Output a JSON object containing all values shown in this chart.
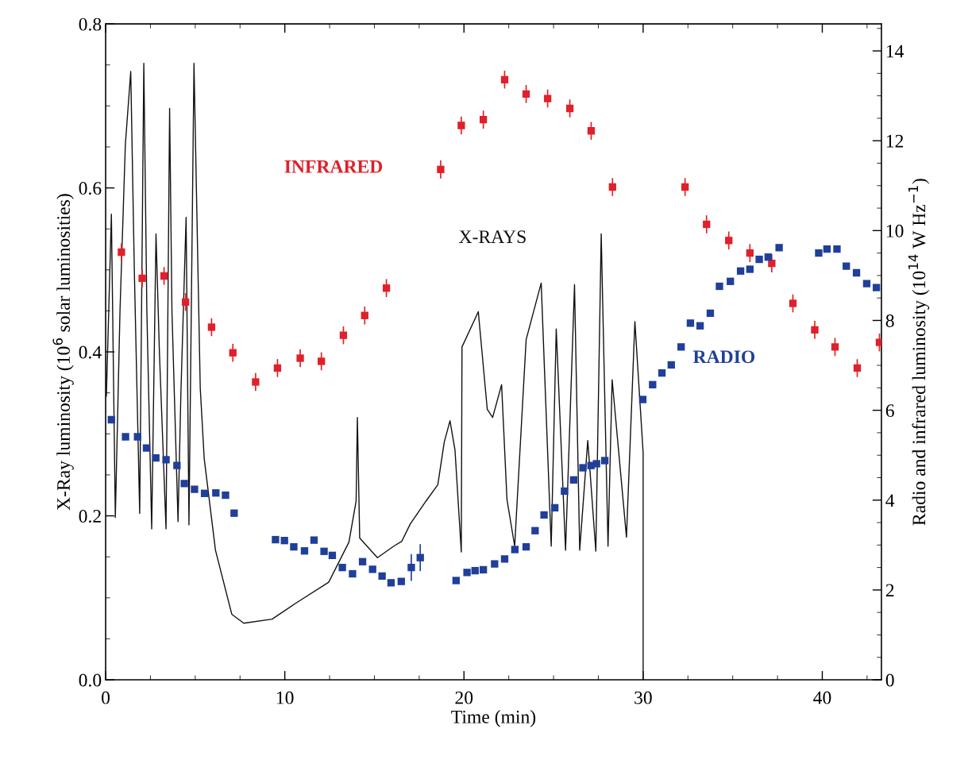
{
  "chart_data": {
    "type": "scatter",
    "xlabel": "Time (min)",
    "ylabel": "X-Ray luminosity (10$^{6}$ solar luminosities)",
    "y2label": "Radio and infrared luminosity (10$^{14}$ W Hz$^{−1}$)",
    "xlim": [
      0,
      43.3
    ],
    "xticks": [
      0,
      10,
      20,
      30,
      40
    ],
    "ylim": [
      0,
      0.8
    ],
    "yticks": [
      {
        "value": 0,
        "label": "0.0"
      },
      {
        "value": 0.2,
        "label": "0.2"
      },
      {
        "value": 0.4,
        "label": "0.4"
      },
      {
        "value": 0.6,
        "label": "0.6"
      },
      {
        "value": 0.8,
        "label": "0.8"
      }
    ],
    "y2lim": [
      0,
      14.6
    ],
    "y2ticks": [
      0,
      2,
      4,
      6,
      8,
      10,
      12,
      14
    ],
    "grid": false,
    "legend": false,
    "marker": "square",
    "series": [
      {
        "name": "X-RAYS",
        "type": "line",
        "marker": "none",
        "line_style": "solid",
        "color": "#111111",
        "x": [
          0.04,
          0.32,
          0.54,
          0.8,
          1.1,
          1.4,
          1.6,
          1.9,
          2.13,
          2.3,
          2.57,
          2.81,
          3.0,
          3.37,
          3.57,
          3.7,
          4.04,
          4.2,
          4.49,
          4.65,
          4.93,
          5.28,
          5.5,
          6.13,
          7.04,
          7.71,
          9.29,
          10.65,
          12.45,
          13.58,
          13.98,
          14.05,
          14.18,
          15.17,
          16.08,
          16.53,
          17.0,
          17.88,
          18.54,
          18.9,
          19.22,
          19.5,
          19.85,
          19.89,
          20.8,
          21.3,
          21.6,
          22.1,
          22.4,
          22.83,
          23.47,
          24.31,
          24.87,
          25.15,
          25.67,
          26.17,
          26.46,
          26.91,
          27.36,
          27.66,
          28.04,
          28.27,
          29.07,
          29.54,
          30.0,
          30.0
        ],
        "values": [
          0.346,
          0.568,
          0.198,
          0.45,
          0.653,
          0.742,
          0.5,
          0.203,
          0.752,
          0.45,
          0.184,
          0.544,
          0.4,
          0.184,
          0.697,
          0.45,
          0.193,
          0.35,
          0.564,
          0.189,
          0.752,
          0.356,
          0.27,
          0.158,
          0.08,
          0.069,
          0.074,
          0.094,
          0.119,
          0.168,
          0.218,
          0.32,
          0.173,
          0.149,
          0.163,
          0.169,
          0.19,
          0.218,
          0.238,
          0.29,
          0.316,
          0.28,
          0.156,
          0.406,
          0.449,
          0.33,
          0.32,
          0.36,
          0.22,
          0.163,
          0.415,
          0.484,
          0.163,
          0.428,
          0.158,
          0.482,
          0.158,
          0.292,
          0.157,
          0.544,
          0.163,
          0.366,
          0.174,
          0.437,
          0.277,
          0.0
        ]
      },
      {
        "name": "INFRARED",
        "axis": "y2",
        "color": "#e0202a",
        "x": [
          0.88,
          2.04,
          3.26,
          4.46,
          5.91,
          7.1,
          8.37,
          9.59,
          10.86,
          12.04,
          13.27,
          14.46,
          15.67,
          18.7,
          19.85,
          21.08,
          22.27,
          23.47,
          24.67,
          25.91,
          27.1,
          28.29,
          32.34,
          33.54,
          34.78,
          35.96,
          37.18,
          38.36,
          39.58,
          40.71,
          41.95,
          43.19
        ],
        "values": [
          9.52,
          8.94,
          8.99,
          8.41,
          7.85,
          7.28,
          6.63,
          6.94,
          7.16,
          7.09,
          7.67,
          8.11,
          8.72,
          11.36,
          12.34,
          12.47,
          13.36,
          13.04,
          12.94,
          12.72,
          12.22,
          10.97,
          10.97,
          10.14,
          9.78,
          9.5,
          9.27,
          8.38,
          7.79,
          7.41,
          6.94,
          7.51
        ],
        "errors": [
          0.2,
          0.2,
          0.2,
          0.2,
          0.2,
          0.2,
          0.2,
          0.2,
          0.2,
          0.2,
          0.2,
          0.2,
          0.2,
          0.2,
          0.2,
          0.2,
          0.2,
          0.2,
          0.2,
          0.2,
          0.2,
          0.2,
          0.2,
          0.2,
          0.2,
          0.2,
          0.2,
          0.2,
          0.2,
          0.2,
          0.2,
          0.2
        ]
      },
      {
        "name": "RADIO",
        "axis": "y2",
        "color": "#1f3f99",
        "x": [
          0.32,
          1.11,
          1.78,
          2.28,
          2.8,
          3.37,
          3.98,
          4.39,
          4.96,
          5.52,
          6.15,
          6.69,
          7.17,
          9.48,
          9.98,
          10.5,
          11.1,
          11.63,
          12.19,
          12.65,
          13.21,
          13.78,
          14.34,
          14.9,
          15.43,
          15.93,
          16.5,
          17.06,
          17.56,
          19.56,
          20.17,
          20.62,
          21.08,
          21.71,
          22.27,
          22.84,
          23.47,
          23.97,
          24.47,
          25.07,
          25.61,
          26.12,
          26.64,
          27.09,
          27.4,
          27.86,
          29.98,
          30.53,
          31.05,
          31.57,
          32.12,
          32.64,
          33.18,
          33.75,
          34.26,
          34.87,
          35.44,
          35.96,
          36.48,
          36.98,
          37.59,
          39.8,
          40.26,
          40.82,
          41.34,
          41.91,
          42.48,
          43.02
        ],
        "values": [
          5.79,
          5.41,
          5.41,
          5.16,
          4.94,
          4.9,
          4.77,
          4.37,
          4.24,
          4.15,
          4.16,
          4.11,
          3.71,
          3.12,
          3.1,
          2.96,
          2.87,
          3.11,
          2.86,
          2.77,
          2.5,
          2.36,
          2.63,
          2.46,
          2.31,
          2.16,
          2.19,
          2.5,
          2.72,
          2.21,
          2.39,
          2.43,
          2.45,
          2.58,
          2.69,
          2.9,
          2.96,
          3.32,
          3.67,
          3.83,
          4.2,
          4.45,
          4.72,
          4.77,
          4.81,
          4.88,
          6.24,
          6.57,
          6.83,
          7.01,
          7.41,
          7.94,
          7.88,
          8.16,
          8.76,
          8.87,
          9.1,
          9.14,
          9.36,
          9.41,
          9.62,
          9.5,
          9.59,
          9.59,
          9.21,
          9.06,
          8.82,
          8.73
        ],
        "errors": [
          null,
          null,
          null,
          null,
          null,
          null,
          null,
          null,
          null,
          null,
          null,
          null,
          null,
          null,
          null,
          null,
          null,
          null,
          null,
          null,
          null,
          null,
          null,
          null,
          null,
          null,
          null,
          0.3,
          0.3,
          null,
          null,
          null,
          null,
          null,
          null,
          null,
          null,
          null,
          null,
          null,
          null,
          null,
          null,
          null,
          null,
          null,
          null,
          null,
          null,
          null,
          null,
          null,
          null,
          null,
          null,
          null,
          null,
          null,
          null,
          null,
          null,
          null,
          null,
          null,
          null,
          null,
          null,
          null
        ]
      }
    ]
  }
}
